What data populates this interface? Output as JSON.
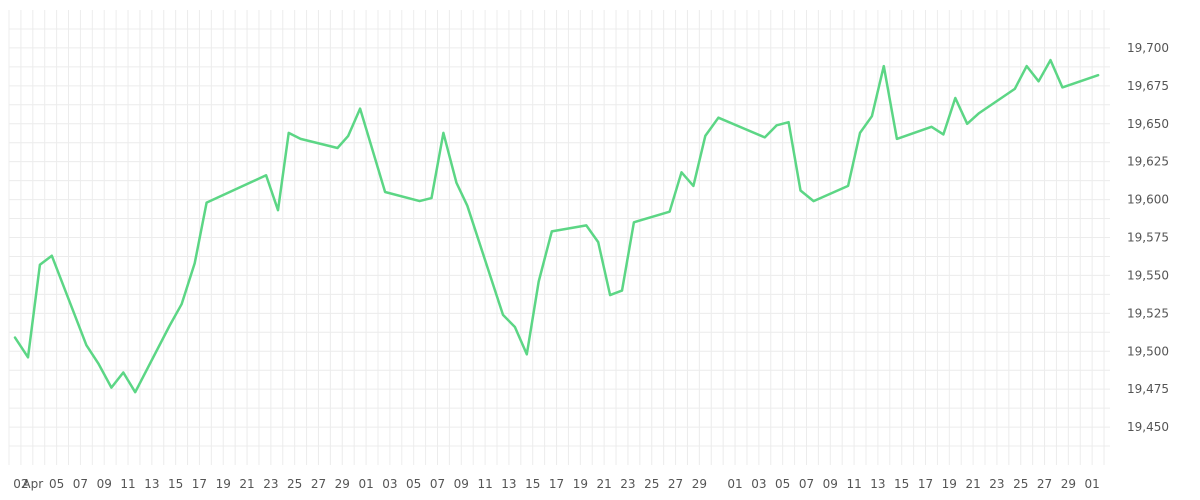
{
  "chart_data": {
    "type": "line",
    "title": "",
    "xlabel": "",
    "ylabel": "",
    "grid": true,
    "legend": "none",
    "line_color": "#5cd685",
    "grid_color": "#ececec",
    "ylim": [
      19425,
      19725
    ],
    "y_ticks": [
      19450,
      19475,
      19500,
      19525,
      19550,
      19575,
      19600,
      19625,
      19650,
      19675,
      19700
    ],
    "y_tick_labels": [
      "19,450",
      "19,475",
      "19,500",
      "19,525",
      "19,550",
      "19,575",
      "19,600",
      "19,625",
      "19,650",
      "19,675",
      "19,700"
    ],
    "x_ticks": [
      {
        "day": 1,
        "label": "02"
      },
      {
        "day": 2,
        "label": "Apr"
      },
      {
        "day": 4,
        "label": "05"
      },
      {
        "day": 6,
        "label": "07"
      },
      {
        "day": 8,
        "label": "09"
      },
      {
        "day": 10,
        "label": "11"
      },
      {
        "day": 12,
        "label": "13"
      },
      {
        "day": 14,
        "label": "15"
      },
      {
        "day": 16,
        "label": "17"
      },
      {
        "day": 18,
        "label": "19"
      },
      {
        "day": 20,
        "label": "21"
      },
      {
        "day": 22,
        "label": "23"
      },
      {
        "day": 24,
        "label": "25"
      },
      {
        "day": 26,
        "label": "27"
      },
      {
        "day": 28,
        "label": "29"
      },
      {
        "day": 30,
        "label": "01"
      },
      {
        "day": 32,
        "label": "03"
      },
      {
        "day": 34,
        "label": "05"
      },
      {
        "day": 36,
        "label": "07"
      },
      {
        "day": 38,
        "label": "09"
      },
      {
        "day": 40,
        "label": "11"
      },
      {
        "day": 42,
        "label": "13"
      },
      {
        "day": 44,
        "label": "15"
      },
      {
        "day": 46,
        "label": "17"
      },
      {
        "day": 48,
        "label": "19"
      },
      {
        "day": 50,
        "label": "21"
      },
      {
        "day": 52,
        "label": "23"
      },
      {
        "day": 54,
        "label": "25"
      },
      {
        "day": 56,
        "label": "27"
      },
      {
        "day": 58,
        "label": "29"
      },
      {
        "day": 61,
        "label": "01"
      },
      {
        "day": 63,
        "label": "03"
      },
      {
        "day": 65,
        "label": "05"
      },
      {
        "day": 67,
        "label": "07"
      },
      {
        "day": 69,
        "label": "09"
      },
      {
        "day": 71,
        "label": "11"
      },
      {
        "day": 73,
        "label": "13"
      },
      {
        "day": 75,
        "label": "15"
      },
      {
        "day": 77,
        "label": "17"
      },
      {
        "day": 79,
        "label": "19"
      },
      {
        "day": 81,
        "label": "21"
      },
      {
        "day": 83,
        "label": "23"
      },
      {
        "day": 85,
        "label": "25"
      },
      {
        "day": 87,
        "label": "27"
      },
      {
        "day": 89,
        "label": "29"
      },
      {
        "day": 91,
        "label": "01"
      }
    ],
    "series": [
      {
        "x": [
          0.5,
          1.6,
          2.6,
          3.6,
          6.5,
          7.5,
          8.6,
          9.6,
          10.6,
          13.5,
          14.5,
          15.6,
          16.6,
          21.6,
          22.6,
          23.5,
          24.5,
          27.6,
          28.5,
          29.5,
          31.6,
          34.5,
          35.5,
          36.5,
          37.6,
          38.5,
          41.5,
          42.5,
          43.5,
          44.5,
          45.6,
          48.5,
          49.5,
          50.5,
          51.5,
          52.5,
          55.5,
          56.5,
          57.5,
          58.5,
          59.6,
          63.5,
          64.5,
          65.5,
          66.5,
          67.6,
          70.5,
          71.5,
          72.5,
          73.5,
          74.6,
          77.5,
          78.5,
          79.5,
          80.5,
          81.5,
          84.5,
          85.5,
          86.5,
          87.5,
          88.5,
          91.5
        ],
        "values": [
          19509,
          19496,
          19557,
          19563,
          19504,
          19492,
          19476,
          19486,
          19473,
          19517,
          19531,
          19558,
          19598,
          19616,
          19593,
          19644,
          19640,
          19634,
          19642,
          19660,
          19605,
          19599,
          19601,
          19644,
          19611,
          19596,
          19524,
          19516,
          19498,
          19546,
          19579,
          19583,
          19572,
          19537,
          19540,
          19585,
          19592,
          19618,
          19609,
          19642,
          19654,
          19641,
          19649,
          19651,
          19606,
          19599,
          19609,
          19644,
          19655,
          19688,
          19640,
          19648,
          19643,
          19667,
          19650,
          19657,
          19673,
          19688,
          19678,
          19692,
          19674,
          19682
        ]
      }
    ]
  }
}
